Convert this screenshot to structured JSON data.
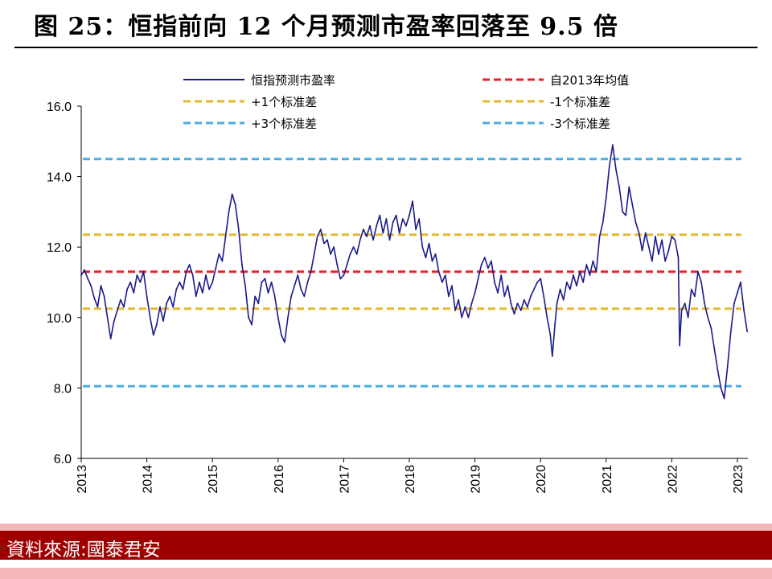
{
  "figure": {
    "title": "图 25：恒指前向 12 个月预测市盈率回落至 9.5 倍",
    "source": "資料來源:國泰君安"
  },
  "chart_data": {
    "type": "line",
    "ylim": [
      6.0,
      16.0
    ],
    "yticks": [
      "6.0",
      "8.0",
      "10.0",
      "12.0",
      "14.0",
      "16.0"
    ],
    "xticks": [
      "2013",
      "2014",
      "2015",
      "2016",
      "2017",
      "2018",
      "2019",
      "2020",
      "2021",
      "2022",
      "2023"
    ],
    "grid": false,
    "legend_position": "top",
    "series": [
      {
        "name": "恒指预测市盈率",
        "color": "#1a1a8c",
        "style": "solid",
        "points": [
          [
            2013.0,
            11.2
          ],
          [
            2013.05,
            11.35
          ],
          [
            2013.1,
            11.1
          ],
          [
            2013.15,
            10.9
          ],
          [
            2013.2,
            10.55
          ],
          [
            2013.25,
            10.3
          ],
          [
            2013.3,
            10.9
          ],
          [
            2013.35,
            10.6
          ],
          [
            2013.4,
            10.0
          ],
          [
            2013.45,
            9.4
          ],
          [
            2013.5,
            9.9
          ],
          [
            2013.55,
            10.2
          ],
          [
            2013.6,
            10.5
          ],
          [
            2013.65,
            10.3
          ],
          [
            2013.7,
            10.8
          ],
          [
            2013.75,
            11.0
          ],
          [
            2013.8,
            10.7
          ],
          [
            2013.85,
            11.2
          ],
          [
            2013.9,
            11.0
          ],
          [
            2013.95,
            11.3
          ],
          [
            2014.0,
            10.6
          ],
          [
            2014.05,
            10.0
          ],
          [
            2014.1,
            9.5
          ],
          [
            2014.15,
            9.8
          ],
          [
            2014.2,
            10.3
          ],
          [
            2014.25,
            9.9
          ],
          [
            2014.3,
            10.4
          ],
          [
            2014.35,
            10.6
          ],
          [
            2014.4,
            10.3
          ],
          [
            2014.45,
            10.8
          ],
          [
            2014.5,
            11.0
          ],
          [
            2014.55,
            10.8
          ],
          [
            2014.6,
            11.3
          ],
          [
            2014.65,
            11.5
          ],
          [
            2014.7,
            11.2
          ],
          [
            2014.75,
            10.6
          ],
          [
            2014.8,
            11.0
          ],
          [
            2014.85,
            10.7
          ],
          [
            2014.9,
            11.2
          ],
          [
            2014.95,
            10.8
          ],
          [
            2015.0,
            11.0
          ],
          [
            2015.05,
            11.4
          ],
          [
            2015.1,
            11.8
          ],
          [
            2015.15,
            11.6
          ],
          [
            2015.2,
            12.3
          ],
          [
            2015.25,
            13.0
          ],
          [
            2015.3,
            13.5
          ],
          [
            2015.35,
            13.2
          ],
          [
            2015.4,
            12.5
          ],
          [
            2015.45,
            11.5
          ],
          [
            2015.5,
            10.9
          ],
          [
            2015.55,
            10.0
          ],
          [
            2015.6,
            9.8
          ],
          [
            2015.65,
            10.6
          ],
          [
            2015.7,
            10.4
          ],
          [
            2015.75,
            11.0
          ],
          [
            2015.8,
            11.1
          ],
          [
            2015.85,
            10.7
          ],
          [
            2015.9,
            11.0
          ],
          [
            2015.95,
            10.6
          ],
          [
            2016.0,
            10.0
          ],
          [
            2016.05,
            9.5
          ],
          [
            2016.1,
            9.3
          ],
          [
            2016.15,
            10.0
          ],
          [
            2016.2,
            10.6
          ],
          [
            2016.25,
            10.9
          ],
          [
            2016.3,
            11.2
          ],
          [
            2016.35,
            10.8
          ],
          [
            2016.4,
            10.6
          ],
          [
            2016.45,
            11.0
          ],
          [
            2016.5,
            11.3
          ],
          [
            2016.55,
            11.8
          ],
          [
            2016.6,
            12.3
          ],
          [
            2016.65,
            12.5
          ],
          [
            2016.7,
            12.1
          ],
          [
            2016.75,
            12.2
          ],
          [
            2016.8,
            11.8
          ],
          [
            2016.85,
            12.0
          ],
          [
            2016.9,
            11.5
          ],
          [
            2016.95,
            11.1
          ],
          [
            2017.0,
            11.2
          ],
          [
            2017.05,
            11.5
          ],
          [
            2017.1,
            11.8
          ],
          [
            2017.15,
            12.0
          ],
          [
            2017.2,
            11.8
          ],
          [
            2017.25,
            12.2
          ],
          [
            2017.3,
            12.5
          ],
          [
            2017.35,
            12.3
          ],
          [
            2017.4,
            12.6
          ],
          [
            2017.45,
            12.2
          ],
          [
            2017.5,
            12.6
          ],
          [
            2017.55,
            12.9
          ],
          [
            2017.6,
            12.4
          ],
          [
            2017.65,
            12.8
          ],
          [
            2017.7,
            12.2
          ],
          [
            2017.75,
            12.7
          ],
          [
            2017.8,
            12.9
          ],
          [
            2017.85,
            12.4
          ],
          [
            2017.9,
            12.8
          ],
          [
            2017.95,
            12.6
          ],
          [
            2018.0,
            12.9
          ],
          [
            2018.05,
            13.3
          ],
          [
            2018.1,
            12.5
          ],
          [
            2018.15,
            12.8
          ],
          [
            2018.2,
            12.0
          ],
          [
            2018.25,
            11.7
          ],
          [
            2018.3,
            12.1
          ],
          [
            2018.35,
            11.6
          ],
          [
            2018.4,
            11.8
          ],
          [
            2018.45,
            11.3
          ],
          [
            2018.5,
            11.0
          ],
          [
            2018.55,
            11.2
          ],
          [
            2018.6,
            10.6
          ],
          [
            2018.65,
            10.9
          ],
          [
            2018.7,
            10.2
          ],
          [
            2018.75,
            10.5
          ],
          [
            2018.8,
            10.0
          ],
          [
            2018.85,
            10.3
          ],
          [
            2018.9,
            10.0
          ],
          [
            2018.95,
            10.4
          ],
          [
            2019.0,
            10.7
          ],
          [
            2019.05,
            11.1
          ],
          [
            2019.1,
            11.5
          ],
          [
            2019.15,
            11.7
          ],
          [
            2019.2,
            11.4
          ],
          [
            2019.25,
            11.6
          ],
          [
            2019.3,
            11.0
          ],
          [
            2019.35,
            10.7
          ],
          [
            2019.4,
            11.2
          ],
          [
            2019.45,
            10.6
          ],
          [
            2019.5,
            10.9
          ],
          [
            2019.55,
            10.4
          ],
          [
            2019.6,
            10.1
          ],
          [
            2019.65,
            10.4
          ],
          [
            2019.7,
            10.2
          ],
          [
            2019.75,
            10.5
          ],
          [
            2019.8,
            10.3
          ],
          [
            2019.85,
            10.6
          ],
          [
            2019.9,
            10.8
          ],
          [
            2019.95,
            11.0
          ],
          [
            2020.0,
            11.1
          ],
          [
            2020.05,
            10.6
          ],
          [
            2020.1,
            10.0
          ],
          [
            2020.15,
            9.5
          ],
          [
            2020.18,
            8.9
          ],
          [
            2020.22,
            9.8
          ],
          [
            2020.25,
            10.4
          ],
          [
            2020.3,
            10.8
          ],
          [
            2020.35,
            10.5
          ],
          [
            2020.4,
            11.0
          ],
          [
            2020.45,
            10.8
          ],
          [
            2020.5,
            11.2
          ],
          [
            2020.55,
            10.9
          ],
          [
            2020.6,
            11.3
          ],
          [
            2020.65,
            11.0
          ],
          [
            2020.7,
            11.5
          ],
          [
            2020.75,
            11.2
          ],
          [
            2020.8,
            11.6
          ],
          [
            2020.85,
            11.3
          ],
          [
            2020.9,
            12.3
          ],
          [
            2020.95,
            12.7
          ],
          [
            2021.0,
            13.4
          ],
          [
            2021.05,
            14.3
          ],
          [
            2021.1,
            14.9
          ],
          [
            2021.15,
            14.2
          ],
          [
            2021.2,
            13.7
          ],
          [
            2021.25,
            13.0
          ],
          [
            2021.3,
            12.9
          ],
          [
            2021.35,
            13.7
          ],
          [
            2021.4,
            13.2
          ],
          [
            2021.45,
            12.7
          ],
          [
            2021.5,
            12.4
          ],
          [
            2021.55,
            11.9
          ],
          [
            2021.6,
            12.4
          ],
          [
            2021.65,
            12.0
          ],
          [
            2021.7,
            11.6
          ],
          [
            2021.75,
            12.3
          ],
          [
            2021.8,
            11.8
          ],
          [
            2021.85,
            12.2
          ],
          [
            2021.9,
            11.6
          ],
          [
            2021.95,
            11.9
          ],
          [
            2022.0,
            12.3
          ],
          [
            2022.05,
            12.2
          ],
          [
            2022.1,
            11.7
          ],
          [
            2022.12,
            9.2
          ],
          [
            2022.15,
            10.2
          ],
          [
            2022.2,
            10.4
          ],
          [
            2022.25,
            10.0
          ],
          [
            2022.3,
            10.8
          ],
          [
            2022.35,
            10.6
          ],
          [
            2022.4,
            11.3
          ],
          [
            2022.45,
            11.0
          ],
          [
            2022.5,
            10.4
          ],
          [
            2022.55,
            10.0
          ],
          [
            2022.6,
            9.7
          ],
          [
            2022.65,
            9.1
          ],
          [
            2022.7,
            8.5
          ],
          [
            2022.75,
            8.0
          ],
          [
            2022.8,
            7.7
          ],
          [
            2022.85,
            8.6
          ],
          [
            2022.9,
            9.6
          ],
          [
            2022.95,
            10.4
          ],
          [
            2023.0,
            10.7
          ],
          [
            2023.05,
            11.0
          ],
          [
            2023.1,
            10.2
          ],
          [
            2023.15,
            9.6
          ]
        ]
      },
      {
        "name": "自2013年均值",
        "color": "#e8222a",
        "style": "dashed",
        "value": 11.3
      },
      {
        "name": "+1个标准差",
        "color": "#e2b92c",
        "style": "dashed",
        "value": 12.35
      },
      {
        "name": "-1个标准差",
        "color": "#e2b92c",
        "style": "dashed",
        "value": 10.25
      },
      {
        "name": "+3个标准差",
        "color": "#4aaee2",
        "style": "dashed",
        "value": 14.5
      },
      {
        "name": "-3个标准差",
        "color": "#4aaee2",
        "style": "dashed",
        "value": 8.05
      }
    ]
  }
}
